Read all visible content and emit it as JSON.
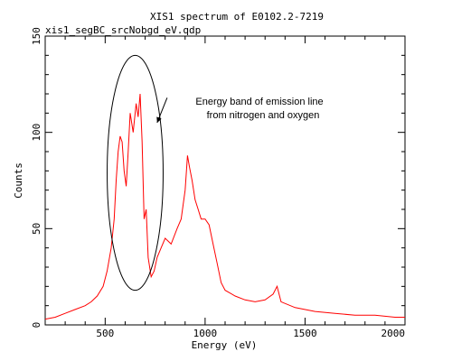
{
  "chart_data": {
    "type": "line",
    "title": "XIS1 spectrum of E0102.2-7219",
    "subtitle": "xis1_segBC_srcNobgd_eV.qdp",
    "xlabel": "Energy (eV)",
    "ylabel": "Counts",
    "xlim": [
      200,
      2000
    ],
    "ylim": [
      0,
      150
    ],
    "xticks": [
      500,
      1000,
      1500,
      2000
    ],
    "yticks": [
      0,
      50,
      100,
      150
    ],
    "x_tick_labels": [
      "500",
      "1000",
      "1500",
      "2000"
    ],
    "y_tick_labels": [
      "0",
      "50",
      "100",
      "150"
    ],
    "grid": false,
    "series_color": "#ff0000",
    "series": [
      {
        "values": [
          [
            200,
            3
          ],
          [
            250,
            4
          ],
          [
            300,
            6
          ],
          [
            350,
            8
          ],
          [
            400,
            10
          ],
          [
            430,
            12
          ],
          [
            460,
            15
          ],
          [
            490,
            20
          ],
          [
            510,
            28
          ],
          [
            530,
            40
          ],
          [
            545,
            55
          ],
          [
            555,
            75
          ],
          [
            565,
            90
          ],
          [
            575,
            98
          ],
          [
            585,
            95
          ],
          [
            595,
            80
          ],
          [
            605,
            72
          ],
          [
            615,
            90
          ],
          [
            625,
            110
          ],
          [
            640,
            100
          ],
          [
            655,
            115
          ],
          [
            665,
            108
          ],
          [
            675,
            120
          ],
          [
            685,
            95
          ],
          [
            695,
            55
          ],
          [
            705,
            60
          ],
          [
            715,
            35
          ],
          [
            730,
            25
          ],
          [
            745,
            28
          ],
          [
            760,
            35
          ],
          [
            780,
            40
          ],
          [
            800,
            45
          ],
          [
            830,
            42
          ],
          [
            860,
            50
          ],
          [
            880,
            55
          ],
          [
            900,
            70
          ],
          [
            912,
            88
          ],
          [
            922,
            82
          ],
          [
            935,
            75
          ],
          [
            950,
            65
          ],
          [
            965,
            60
          ],
          [
            980,
            55
          ],
          [
            1000,
            55
          ],
          [
            1020,
            52
          ],
          [
            1040,
            42
          ],
          [
            1060,
            32
          ],
          [
            1080,
            22
          ],
          [
            1100,
            18
          ],
          [
            1150,
            15
          ],
          [
            1200,
            13
          ],
          [
            1250,
            12
          ],
          [
            1300,
            13
          ],
          [
            1340,
            16
          ],
          [
            1360,
            20
          ],
          [
            1380,
            12
          ],
          [
            1450,
            9
          ],
          [
            1550,
            7
          ],
          [
            1650,
            6
          ],
          [
            1750,
            5
          ],
          [
            1850,
            5
          ],
          [
            1950,
            4
          ],
          [
            2000,
            4
          ]
        ]
      }
    ],
    "annotation": {
      "text_lines": [
        "Energy band of emission line",
        "from nitrogen and oxygen"
      ],
      "ellipse_x_range": [
        510,
        790
      ],
      "ellipse_y_range": [
        18,
        140
      ],
      "arrow_target": [
        760,
        105
      ],
      "arrow_from": [
        810,
        118
      ]
    }
  }
}
